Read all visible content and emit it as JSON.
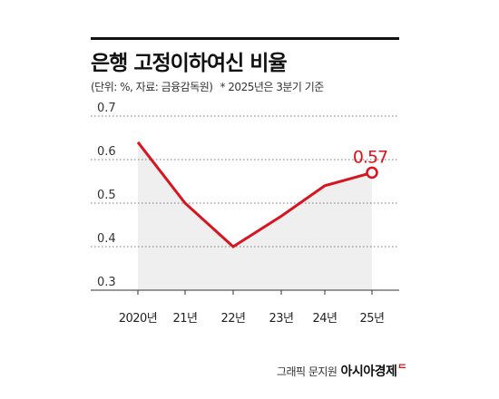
{
  "title": "은행 고정이하여신 비율",
  "subtitle": {
    "unit_source": "(단위: %, 자료: 금융감독원)",
    "note": "* 2025년은 3분기 기준"
  },
  "credit": {
    "graphic": "그래픽 문지원",
    "brand": "아시아경제"
  },
  "colors": {
    "line": "#d8151e",
    "area": "#efefef",
    "grid": "#7a7a7a",
    "text": "#333333"
  },
  "chart_data": {
    "type": "area",
    "categories": [
      "2020년",
      "21년",
      "22년",
      "23년",
      "24년",
      "25년"
    ],
    "values": [
      0.64,
      0.5,
      0.4,
      0.47,
      0.54,
      0.57
    ],
    "y_ticks": [
      "0.7",
      "0.6",
      "0.5",
      "0.4",
      "0.3"
    ],
    "ylim": [
      0.3,
      0.7
    ],
    "highlight": {
      "index": 5,
      "label": "0.57"
    },
    "grid": "dotted-horizontal"
  }
}
